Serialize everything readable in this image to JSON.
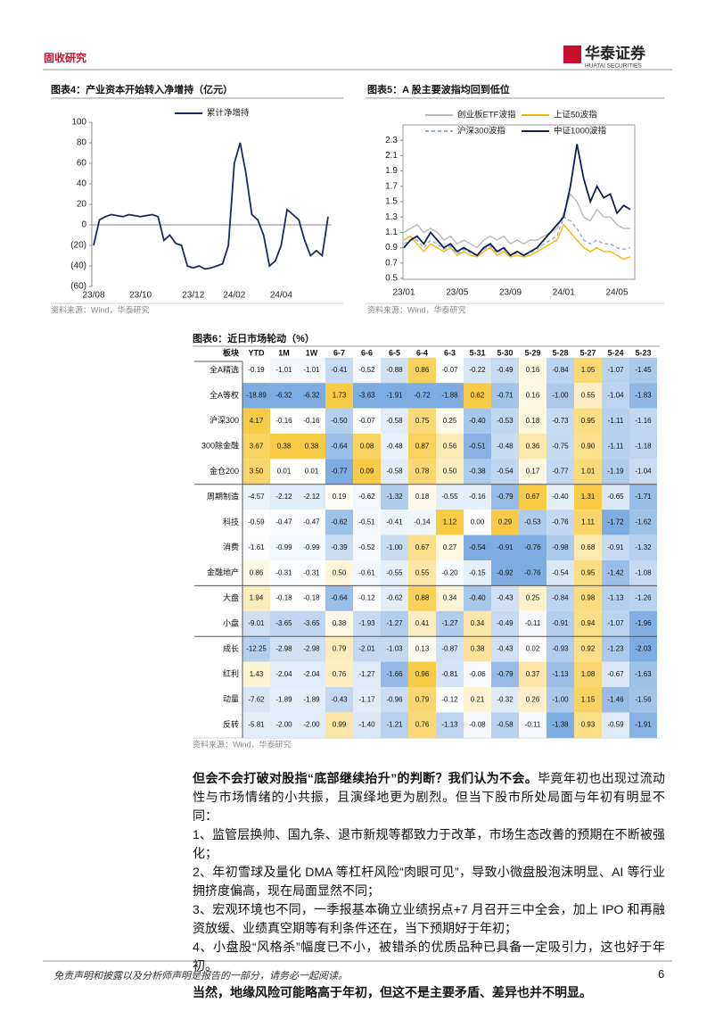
{
  "header": {
    "section": "固收研究",
    "logo_cn": "华泰证券",
    "logo_en": "HUATAI SECURITIES"
  },
  "chart_data": [
    {
      "type": "line",
      "title": "图表4：产业资本开始转入净增持（亿元）",
      "source": "资料来源：Wind，华泰研究",
      "categories": [
        "23/08",
        null,
        null,
        null,
        null,
        null,
        null,
        null,
        "23/10",
        null,
        null,
        null,
        null,
        null,
        null,
        null,
        null,
        "23/12",
        null,
        null,
        null,
        null,
        null,
        null,
        "24/02",
        null,
        null,
        null,
        null,
        null,
        null,
        null,
        "24/04",
        null,
        null,
        null,
        null,
        null,
        null,
        null,
        null
      ],
      "series": [
        {
          "name": "累计净增持",
          "color": "#1b2a5e",
          "values": [
            -20,
            5,
            8,
            10,
            9,
            8,
            10,
            9,
            8,
            9,
            10,
            8,
            -15,
            -10,
            -18,
            -20,
            -40,
            -42,
            -40,
            -43,
            -42,
            -40,
            -38,
            -20,
            60,
            80,
            50,
            10,
            5,
            -10,
            -40,
            -35,
            -20,
            15,
            10,
            5,
            -15,
            -30,
            -25,
            -30,
            8
          ]
        }
      ],
      "ylim": [
        -60,
        100
      ],
      "yticks": [
        100,
        80,
        60,
        40,
        20,
        0,
        {
          "value": -20,
          "label": "(20)"
        },
        {
          "value": -40,
          "label": "(40)"
        },
        {
          "value": -60,
          "label": "(60)"
        }
      ]
    },
    {
      "type": "line",
      "title": "图表5：A 股主要波指均回到低位",
      "source": "资料来源：Wind，华泰研究",
      "categories": [
        "23/01",
        null,
        null,
        null,
        null,
        null,
        null,
        null,
        "23/05",
        null,
        null,
        null,
        null,
        null,
        null,
        null,
        "23/09",
        null,
        null,
        null,
        null,
        null,
        null,
        null,
        "24/01",
        null,
        null,
        null,
        null,
        null,
        null,
        null,
        "24/05",
        null,
        null
      ],
      "series": [
        {
          "name": "创业板ETF波指",
          "color": "#b8b8b8",
          "values": [
            1.1,
            1.15,
            1.2,
            1.1,
            1.15,
            1.1,
            1.0,
            1.05,
            0.95,
            1.0,
            0.95,
            0.9,
            1.0,
            1.05,
            1.0,
            1.05,
            0.95,
            1.0,
            0.95,
            1.0,
            1.0,
            1.05,
            1.1,
            1.15,
            1.35,
            1.6,
            1.5,
            1.3,
            1.25,
            1.4,
            1.3,
            1.3,
            1.2,
            1.15,
            1.15
          ]
        },
        {
          "name": "上证50波指",
          "color": "#f5b800",
          "values": [
            1.0,
            1.05,
            0.95,
            0.85,
            0.95,
            0.9,
            0.85,
            0.9,
            0.8,
            0.85,
            0.8,
            0.78,
            0.85,
            0.9,
            0.8,
            0.85,
            0.78,
            0.8,
            0.78,
            0.8,
            0.85,
            0.9,
            0.95,
            1.0,
            1.2,
            1.1,
            1.0,
            0.9,
            0.85,
            0.9,
            0.85,
            0.85,
            0.8,
            0.75,
            0.78
          ]
        },
        {
          "name": "沪深300波指",
          "color": "#8fa8d8",
          "dashed": true,
          "values": [
            0.95,
            1.0,
            1.0,
            0.9,
            1.0,
            0.95,
            0.88,
            0.92,
            0.82,
            0.88,
            0.83,
            0.8,
            0.88,
            0.92,
            0.83,
            0.88,
            0.8,
            0.83,
            0.8,
            0.83,
            0.88,
            0.95,
            1.0,
            1.05,
            1.3,
            1.25,
            1.15,
            1.0,
            0.95,
            1.0,
            0.95,
            0.95,
            0.9,
            0.88,
            0.9
          ]
        },
        {
          "name": "中证1000波指",
          "color": "#0f1f55",
          "values": [
            0.9,
            1.0,
            1.05,
            0.95,
            1.1,
            1.0,
            0.9,
            0.95,
            0.85,
            0.9,
            0.85,
            0.8,
            0.9,
            0.95,
            0.85,
            0.9,
            0.8,
            0.85,
            0.8,
            0.85,
            0.9,
            1.0,
            1.1,
            1.2,
            1.3,
            1.7,
            2.25,
            1.8,
            1.5,
            1.7,
            1.55,
            1.6,
            1.35,
            1.45,
            1.4
          ]
        }
      ],
      "ylim": [
        0.5,
        2.5
      ],
      "yticks": [
        0.5,
        0.7,
        0.9,
        1.1,
        1.3,
        1.5,
        1.7,
        1.9,
        2.1,
        2.3
      ]
    }
  ],
  "table": {
    "title": "图表6：近日市场轮动（%）",
    "source": "资料来源：Wind，华泰研究",
    "columns": [
      "板块",
      "YTD",
      "1M",
      "1W",
      "6-7",
      "6-6",
      "6-5",
      "6-4",
      "6-3",
      "5-31",
      "5-30",
      "5-29",
      "5-28",
      "5-27",
      "5-24",
      "5-23"
    ],
    "rows": [
      {
        "label": "全A精选",
        "cells": [
          "-0.19",
          "-1.01",
          "-1.01",
          "-0.41",
          "-0.52",
          "-0.88",
          "0.86",
          "-0.07",
          "-0.22",
          "-0.49",
          "0.16",
          "-0.84",
          "1.05",
          "-1.07",
          "-1.45"
        ]
      },
      {
        "label": "全A等权",
        "cells": [
          "-18.89",
          "-6.32",
          "-6.32",
          "1.73",
          "-3.63",
          "-1.91",
          "-0.72",
          "-1.88",
          "0.62",
          "-0.71",
          "0.16",
          "-1.00",
          "0.55",
          "-1.04",
          "-1.83"
        ]
      },
      {
        "label": "沪深300",
        "cells": [
          "4.17",
          "-0.16",
          "-0.16",
          "-0.50",
          "-0.07",
          "-0.58",
          "0.75",
          "0.25",
          "-0.40",
          "-0.53",
          "0.18",
          "-0.73",
          "0.95",
          "-1.11",
          "-1.16"
        ]
      },
      {
        "label": "300除金融",
        "cells": [
          "3.67",
          "0.38",
          "0.38",
          "-0.64",
          "0.08",
          "-0.48",
          "0.87",
          "0.56",
          "-0.51",
          "-0.48",
          "0.36",
          "-0.75",
          "0.90",
          "-1.11",
          "-1.18"
        ]
      },
      {
        "label": "金仓200",
        "cells": [
          "3.50",
          "0.01",
          "0.01",
          "-0.77",
          "0.09",
          "-0.58",
          "0.78",
          "0.50",
          "-0.38",
          "-0.54",
          "0.17",
          "-0.77",
          "1.01",
          "-1.19",
          "-1.04"
        ]
      },
      {
        "label": "周期制造",
        "cells": [
          "-4.57",
          "-2.12",
          "-2.12",
          "0.19",
          "-0.62",
          "-1.32",
          "0.18",
          "-0.55",
          "-0.16",
          "-0.79",
          "0.67",
          "-0.40",
          "1.31",
          "-0.65",
          "-1.71"
        ]
      },
      {
        "label": "科技",
        "cells": [
          "-0.59",
          "-0.47",
          "-0.47",
          "-0.62",
          "-0.51",
          "-0.41",
          "-0.14",
          "1.12",
          "0.00",
          "0.29",
          "-0.53",
          "-0.76",
          "1.11",
          "-1.72",
          "-1.62"
        ]
      },
      {
        "label": "消费",
        "cells": [
          "-1.61",
          "-0.99",
          "-0.99",
          "-0.39",
          "-0.52",
          "-1.00",
          "0.67",
          "0.27",
          "-0.54",
          "-0.91",
          "-0.76",
          "-0.98",
          "0.68",
          "-0.91",
          "-1.32"
        ]
      },
      {
        "label": "金融地产",
        "cells": [
          "0.86",
          "-0.31",
          "-0.31",
          "0.50",
          "-0.61",
          "-0.55",
          "0.55",
          "-0.20",
          "-0.15",
          "-0.92",
          "-0.76",
          "-0.54",
          "0.95",
          "-1.42",
          "-1.08"
        ]
      },
      {
        "label": "大盘",
        "cells": [
          "1.94",
          "-0.18",
          "-0.18",
          "-0.64",
          "-0.12",
          "-0.62",
          "0.88",
          "0.34",
          "-0.40",
          "-0.43",
          "0.25",
          "-0.84",
          "0.98",
          "-1.13",
          "-1.26"
        ]
      },
      {
        "label": "小盘",
        "cells": [
          "-9.01",
          "-3.65",
          "-3.65",
          "0.38",
          "-1.93",
          "-1.27",
          "0.41",
          "-1.27",
          "0.34",
          "-0.49",
          "-0.11",
          "-0.91",
          "0.94",
          "-1.07",
          "-1.96"
        ]
      },
      {
        "label": "成长",
        "cells": [
          "-12.25",
          "-2.98",
          "-2.98",
          "0.79",
          "-2.01",
          "-1.03",
          "0.13",
          "-0.87",
          "0.38",
          "-0.43",
          "0.02",
          "-0.93",
          "0.92",
          "-1.23",
          "-2.03"
        ]
      },
      {
        "label": "红利",
        "cells": [
          "1.43",
          "-2.04",
          "-2.04",
          "0.76",
          "-1.27",
          "-1.66",
          "0.96",
          "-0.81",
          "-0.06",
          "-0.79",
          "0.37",
          "-1.13",
          "1.08",
          "-0.67",
          "-1.63"
        ]
      },
      {
        "label": "动量",
        "cells": [
          "-7.62",
          "-1.89",
          "-1.89",
          "-0.43",
          "-1.17",
          "-0.96",
          "0.79",
          "-0.12",
          "0.21",
          "-0.32",
          "0.26",
          "-1.00",
          "1.15",
          "-1.46",
          "-1.56"
        ]
      },
      {
        "label": "反转",
        "cells": [
          "-5.81",
          "-2.00",
          "-2.00",
          "0.99",
          "-1.40",
          "-1.21",
          "0.76",
          "-1.13",
          "-0.08",
          "-0.58",
          "-0.11",
          "-1.38",
          "0.93",
          "-0.59",
          "-1.91"
        ]
      }
    ]
  },
  "body": {
    "lead_bold": "但会不会打破对股指“底部继续抬升”的判断？我们认为不会。",
    "lead": "毕竟年初也出现过流动性与市场情绪的小共振，且演绎地更为剧烈。但当下股市所处局面与年初有明显不同：",
    "items": [
      "1、监管层换帅、国九条、退市新规等都致力于改革，市场生态改善的预期在不断被强化；",
      "2、年初雪球及量化 DMA 等杠杆风险“肉眼可见”，导致小微盘股泡沫明显、AI 等行业拥挤度偏高，现在局面显然不同；",
      "3、宏观环境也不同，一季报基本确立业绩拐点+7 月召开三中全会，加上 IPO 和再融资放缓、业绩真空期等有利条件还在，当下预期好于年初；",
      "4、小盘股“风格杀”幅度已不小，被错杀的优质品种已具备一定吸引力，这也好于年初。"
    ],
    "closing": "当然，地缘风险可能略高于年初，但这不是主要矛盾、差异也并不明显。"
  },
  "footer": {
    "note": "免责声明和披露以及分析师声明是报告的一部分，请务必一起阅读。",
    "page": "6"
  }
}
